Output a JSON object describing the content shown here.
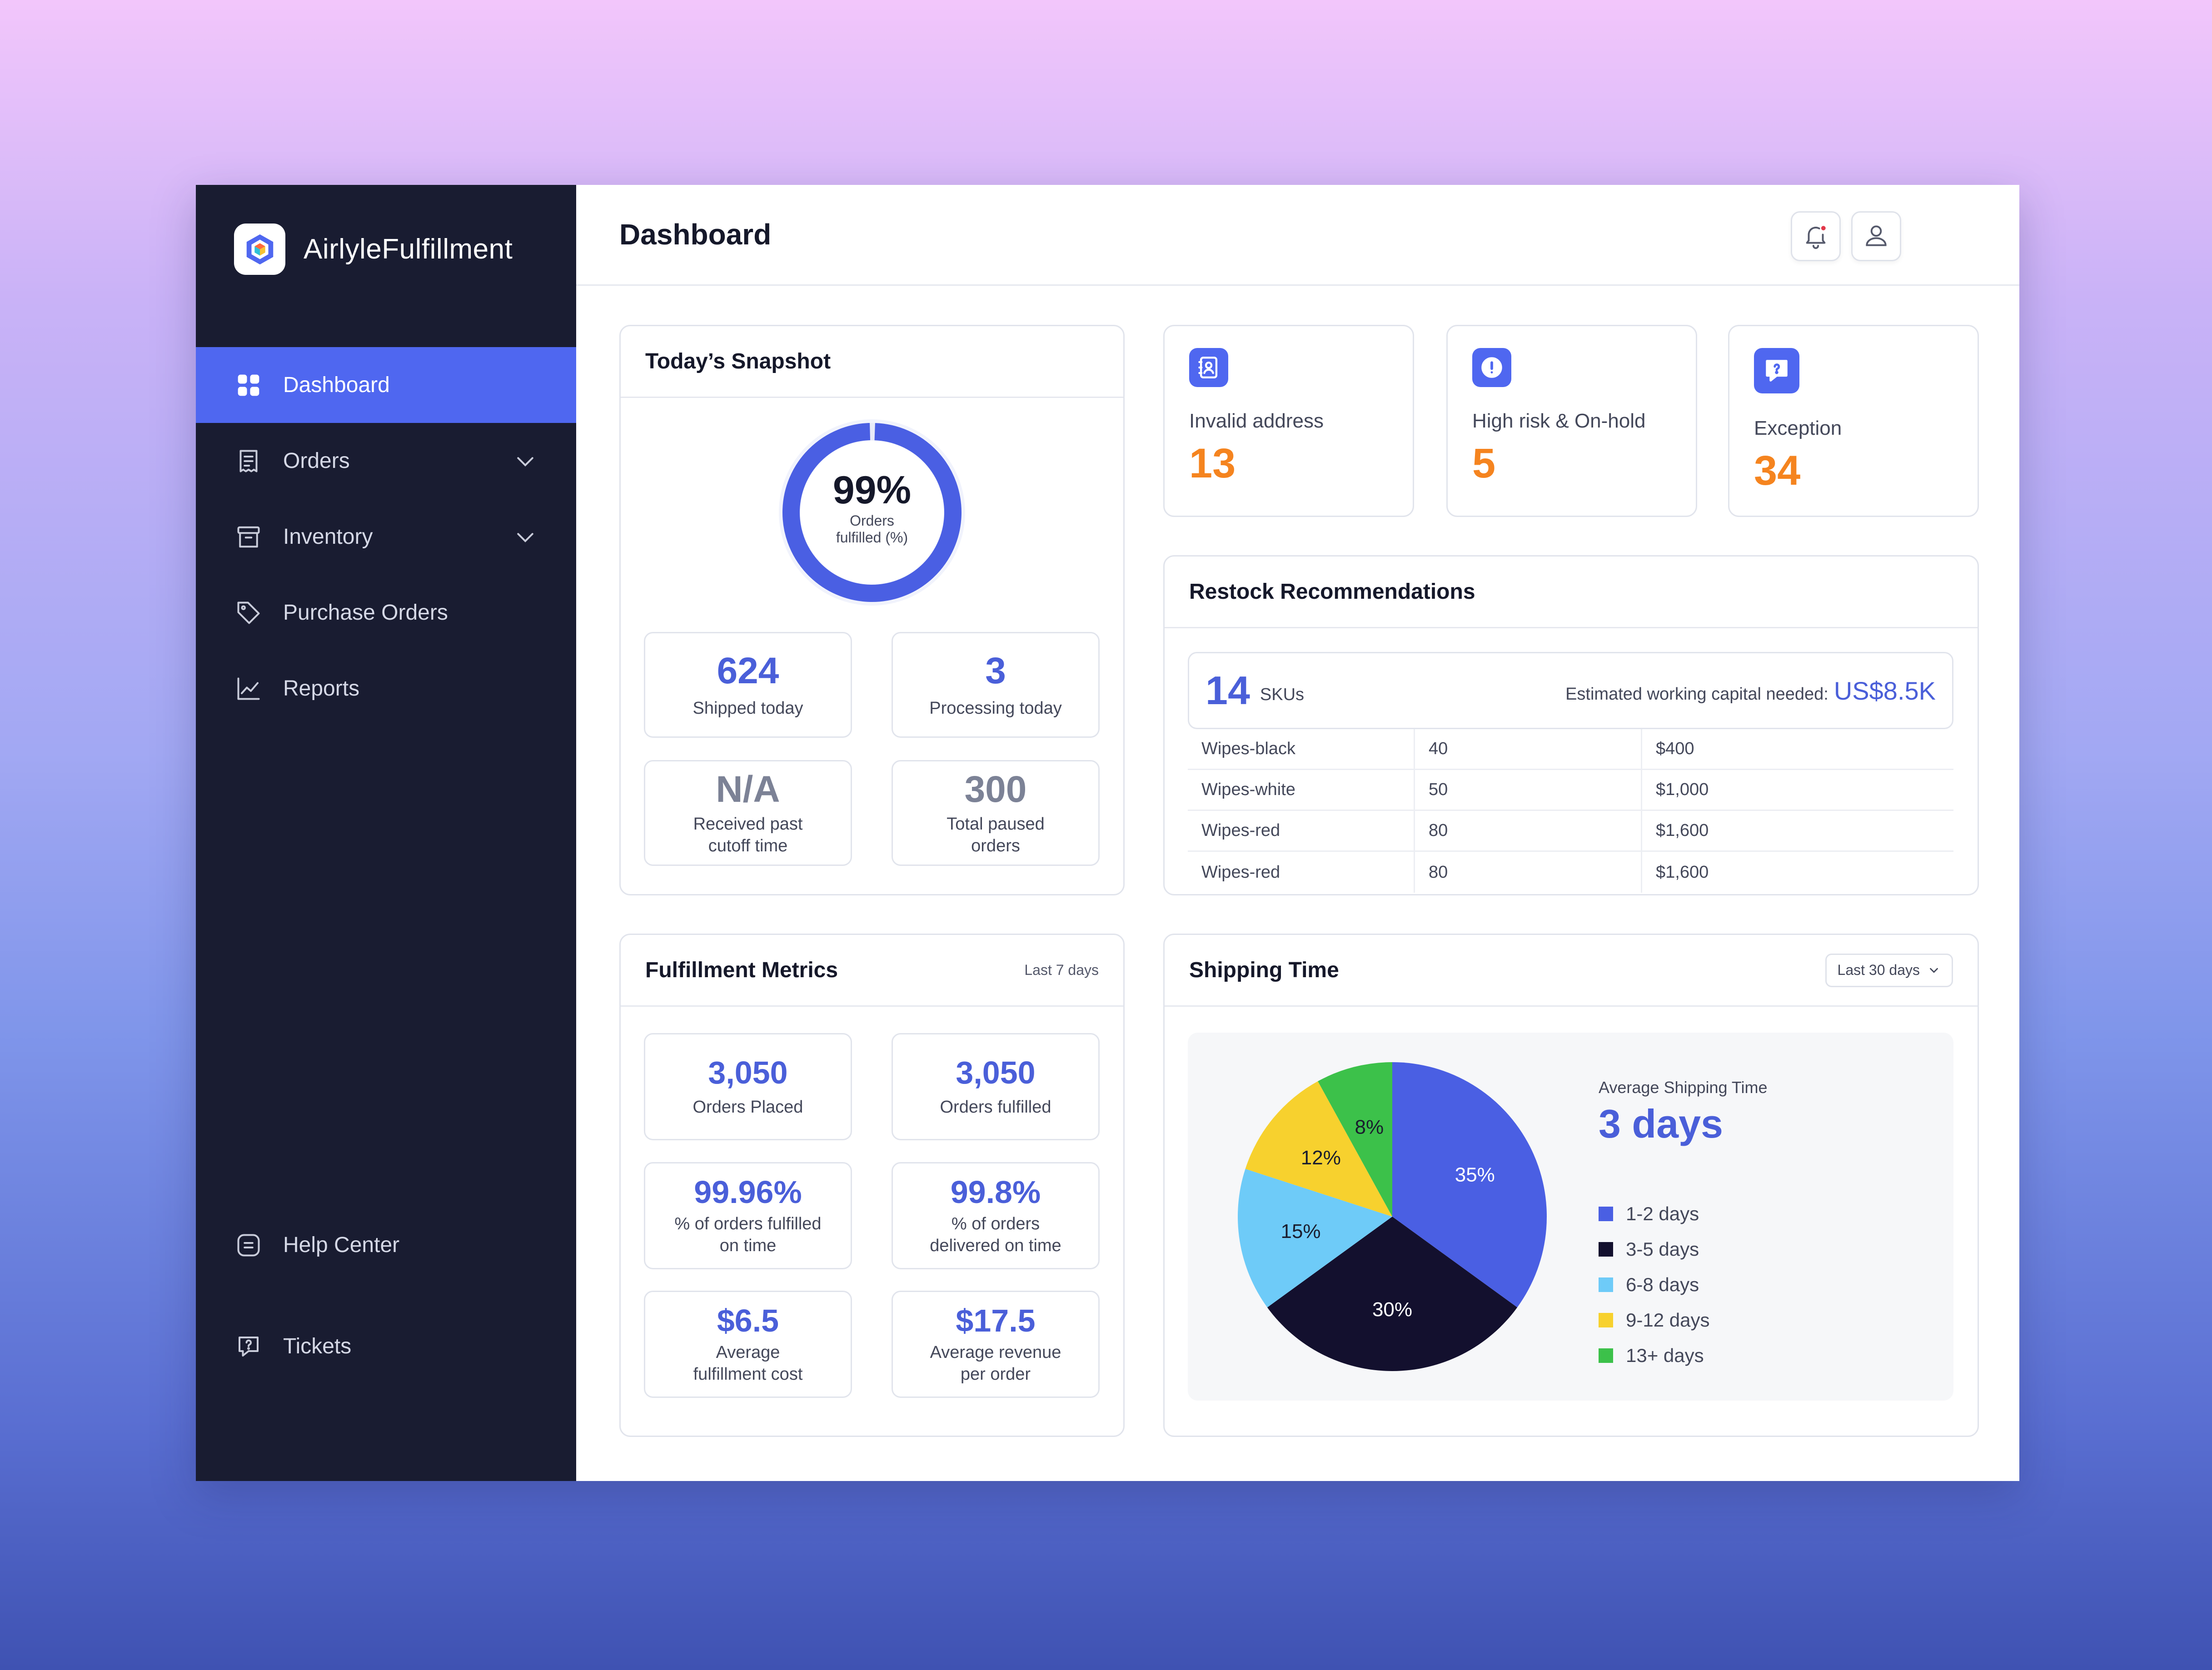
{
  "brand": {
    "name": "AirlyleFulfillment"
  },
  "sidebar": {
    "items": [
      {
        "label": "Dashboard",
        "icon": "grid-icon"
      },
      {
        "label": "Orders",
        "icon": "receipt-icon"
      },
      {
        "label": "Inventory",
        "icon": "archive-box-icon"
      },
      {
        "label": "Purchase Orders",
        "icon": "tag-icon"
      },
      {
        "label": "Reports",
        "icon": "line-chart-icon"
      }
    ],
    "bottom": [
      {
        "label": "Help Center",
        "icon": "help-center-icon"
      },
      {
        "label": "Tickets",
        "icon": "chat-question-icon"
      }
    ]
  },
  "header": {
    "title": "Dashboard"
  },
  "snapshot": {
    "title": "Today’s Snapshot",
    "ring_value": "99%",
    "ring_fraction": 0.99,
    "ring_label_1": "Orders",
    "ring_label_2": "fulfilled (%)",
    "tiles": [
      {
        "value": "624",
        "label": "Shipped today"
      },
      {
        "value": "3",
        "label": "Processing today"
      },
      {
        "value": "N/A",
        "label_1": "Received past",
        "label_2": "cutoff time"
      },
      {
        "value": "300",
        "label_1": "Total paused",
        "label_2": "orders"
      }
    ]
  },
  "alerts": [
    {
      "label": "Invalid address",
      "value": "13",
      "icon": "address-book-icon"
    },
    {
      "label": "High risk & On-hold",
      "value": "5",
      "icon": "alert-circle-icon"
    },
    {
      "label": "Exception",
      "value": "34",
      "icon": "chat-question-icon"
    }
  ],
  "restock": {
    "title": "Restock Recommendations",
    "sku_count": "14",
    "sku_unit": "SKUs",
    "capital_label": "Estimated working capital needed:",
    "capital_value": "US$8.5K",
    "rows": [
      {
        "name": "Wipes-black",
        "qty": "40",
        "cost": "$400"
      },
      {
        "name": "Wipes-white",
        "qty": "50",
        "cost": "$1,000"
      },
      {
        "name": "Wipes-red",
        "qty": "80",
        "cost": "$1,600"
      },
      {
        "name": "Wipes-red",
        "qty": "80",
        "cost": "$1,600"
      }
    ]
  },
  "metrics": {
    "title": "Fulfillment Metrics",
    "period": "Last 7 days",
    "tiles": [
      {
        "value": "3,050",
        "label_1": "Orders Placed",
        "label_2": ""
      },
      {
        "value": "3,050",
        "label_1": "Orders fulfilled",
        "label_2": ""
      },
      {
        "value": "99.96%",
        "label_1": "% of orders fulfilled",
        "label_2": "on time"
      },
      {
        "value": "99.8%",
        "label_1": "% of orders",
        "label_2": "delivered on time"
      },
      {
        "value": "$6.5",
        "label_1": "Average",
        "label_2": "fulfillment cost"
      },
      {
        "value": "$17.5",
        "label_1": "Average revenue",
        "label_2": "per order"
      }
    ]
  },
  "shipping": {
    "title": "Shipping Time",
    "period": "Last 30 days",
    "avg_label": "Average Shipping Time",
    "avg_value": "3 days"
  },
  "chart_data": {
    "type": "pie",
    "title": "",
    "categories": [
      "1-2 days",
      "3-5 days",
      "6-8 days",
      "9-12 days",
      "13+ days"
    ],
    "values": [
      35,
      30,
      15,
      12,
      8
    ],
    "labels": [
      "35%",
      "30%",
      "15%",
      "12%",
      "8%"
    ],
    "colors": [
      "#4a5fe3",
      "#13102e",
      "#6ecbf8",
      "#f7d12e",
      "#3cc14a"
    ],
    "label_colors": [
      "#ffffff",
      "#ffffff",
      "#1a1d2e",
      "#1a1d2e",
      "#1a1d2e"
    ],
    "legend": "right"
  },
  "colors": {
    "accent": "#4f67f0",
    "sidebar": "#191c31",
    "alert_value": "#f5841f"
  }
}
